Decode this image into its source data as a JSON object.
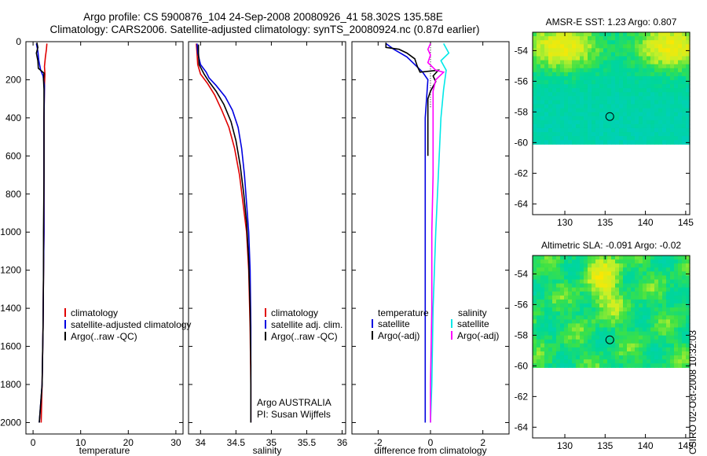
{
  "header": {
    "line1": "Argo profile: CS 5900876_104 24-Sep-2008 20080926_41 58.302S 135.58E",
    "line2": "Climatology: CARS2006. Satellite-adjusted climatology: synTS_20080924.nc (0.87d earlier)"
  },
  "colors": {
    "climatology": "#e00000",
    "satellite": "#0000e0",
    "argo": "#000000",
    "sal_satellite": "#00e8e8",
    "sal_argo": "#ff00ff"
  },
  "chart_data": [
    {
      "type": "line",
      "xlabel": "temperature",
      "ylabel": "",
      "xlim": [
        -1.5,
        31.5
      ],
      "ylim": [
        2060,
        0
      ],
      "xticks": [
        0,
        10,
        20,
        30
      ],
      "yticks": [
        0,
        200,
        400,
        600,
        800,
        1000,
        1200,
        1400,
        1600,
        1800,
        2000
      ],
      "legend": [
        "climatology",
        "satellite-adjusted climatology",
        "Argo(..raw -QC)"
      ],
      "series": [
        {
          "name": "climatology",
          "color": "#e00000",
          "points": [
            [
              2.9,
              10
            ],
            [
              2.8,
              40
            ],
            [
              2.6,
              80
            ],
            [
              2.4,
              130
            ],
            [
              2.5,
              170
            ],
            [
              2.4,
              230
            ],
            [
              2.3,
              400
            ],
            [
              2.3,
              700
            ],
            [
              2.3,
              1000
            ],
            [
              2.2,
              1200
            ],
            [
              2.1,
              1500
            ],
            [
              1.9,
              1800
            ],
            [
              1.7,
              2000
            ]
          ]
        },
        {
          "name": "satellite-adjusted climatology",
          "color": "#0000e0",
          "points": [
            [
              0.7,
              10
            ],
            [
              1.0,
              50
            ],
            [
              1.2,
              100
            ],
            [
              1.6,
              150
            ],
            [
              2.1,
              180
            ],
            [
              2.4,
              230
            ],
            [
              2.3,
              400
            ],
            [
              2.3,
              700
            ],
            [
              2.3,
              1000
            ],
            [
              2.2,
              1200
            ],
            [
              2.1,
              1500
            ],
            [
              1.9,
              1800
            ],
            [
              1.3,
              2000
            ]
          ]
        },
        {
          "name": "Argo(..raw -QC)",
          "color": "#000000",
          "points": [
            [
              0.8,
              5
            ],
            [
              1.0,
              30
            ],
            [
              0.7,
              60
            ],
            [
              1.0,
              100
            ],
            [
              1.1,
              140
            ],
            [
              2.3,
              165
            ],
            [
              2.2,
              200
            ],
            [
              2.3,
              250
            ],
            [
              2.3,
              400
            ],
            [
              2.3,
              700
            ],
            [
              2.2,
              1000
            ],
            [
              2.2,
              1200
            ],
            [
              2.1,
              1500
            ],
            [
              1.9,
              1800
            ],
            [
              1.3,
              2000
            ]
          ]
        }
      ]
    },
    {
      "type": "line",
      "xlabel": "salinity",
      "ylabel": "",
      "xlim": [
        33.83,
        36.05
      ],
      "ylim": [
        2060,
        0
      ],
      "xticks": [
        34,
        34.5,
        35,
        35.5,
        36
      ],
      "yticks": [],
      "legend": [
        "climatology",
        "satellite adj. clim.",
        "Argo(..raw -QC)"
      ],
      "annotation": [
        "Argo AUSTRALIA",
        "PI: Susan Wijffels"
      ],
      "series": [
        {
          "name": "climatology",
          "color": "#e00000",
          "points": [
            [
              33.94,
              10
            ],
            [
              33.95,
              60
            ],
            [
              33.96,
              120
            ],
            [
              34.0,
              170
            ],
            [
              34.1,
              220
            ],
            [
              34.2,
              280
            ],
            [
              34.3,
              360
            ],
            [
              34.4,
              450
            ],
            [
              34.48,
              560
            ],
            [
              34.55,
              700
            ],
            [
              34.6,
              850
            ],
            [
              34.65,
              1000
            ],
            [
              34.68,
              1200
            ],
            [
              34.7,
              1500
            ],
            [
              34.71,
              1800
            ],
            [
              34.71,
              2000
            ]
          ]
        },
        {
          "name": "satellite adj. clim.",
          "color": "#0000e0",
          "points": [
            [
              33.95,
              10
            ],
            [
              33.96,
              60
            ],
            [
              34.0,
              120
            ],
            [
              34.08,
              160
            ],
            [
              34.12,
              190
            ],
            [
              34.22,
              230
            ],
            [
              34.35,
              290
            ],
            [
              34.45,
              360
            ],
            [
              34.53,
              450
            ],
            [
              34.58,
              560
            ],
            [
              34.62,
              700
            ],
            [
              34.65,
              850
            ],
            [
              34.68,
              1000
            ],
            [
              34.7,
              1200
            ],
            [
              34.71,
              1500
            ],
            [
              34.71,
              1800
            ],
            [
              34.71,
              2000
            ]
          ]
        },
        {
          "name": "Argo(..raw -QC)",
          "color": "#000000",
          "points": [
            [
              33.97,
              15
            ],
            [
              33.97,
              60
            ],
            [
              33.98,
              120
            ],
            [
              34.05,
              170
            ],
            [
              34.12,
              210
            ],
            [
              34.22,
              260
            ],
            [
              34.33,
              330
            ],
            [
              34.43,
              420
            ],
            [
              34.5,
              520
            ],
            [
              34.56,
              650
            ],
            [
              34.61,
              800
            ],
            [
              34.65,
              950
            ],
            [
              34.68,
              1150
            ],
            [
              34.7,
              1400
            ],
            [
              34.71,
              1700
            ],
            [
              34.71,
              2000
            ]
          ]
        }
      ]
    },
    {
      "type": "line",
      "xlabel": "difference from climatology",
      "ylabel": "",
      "xlim": [
        -3.0,
        3.0
      ],
      "ylim": [
        2060,
        0
      ],
      "xticks": [
        -2,
        0,
        2
      ],
      "xticklabels": [
        "-2",
        "0",
        "2"
      ],
      "yticks": [],
      "legend_left_title": "temperature",
      "legend_right_title": "salinity",
      "legend_left": [
        "satellite",
        "Argo(-adj)"
      ],
      "legend_right": [
        "satellite",
        "Argo(-adj)"
      ],
      "series": [
        {
          "name": "temperature satellite",
          "color": "#0000e0",
          "points": [
            [
              -1.7,
              10
            ],
            [
              -1.4,
              40
            ],
            [
              -0.9,
              80
            ],
            [
              -0.6,
              120
            ],
            [
              -0.3,
              160
            ],
            [
              -0.1,
              200
            ],
            [
              -0.2,
              400
            ],
            [
              -0.2,
              800
            ],
            [
              -0.2,
              1200
            ],
            [
              -0.2,
              1600
            ],
            [
              -0.2,
              2000
            ]
          ]
        },
        {
          "name": "temperature Argo(-adj)",
          "color": "#000000",
          "points": [
            [
              -1.7,
              5
            ],
            [
              -1.7,
              30
            ],
            [
              -1.2,
              40
            ],
            [
              -0.9,
              60
            ],
            [
              -0.6,
              90
            ],
            [
              -0.5,
              130
            ],
            [
              -0.4,
              160
            ],
            [
              0.3,
              150
            ],
            [
              0.1,
              180
            ],
            [
              0.2,
              210
            ],
            [
              0.0,
              260
            ],
            [
              -0.1,
              300
            ],
            [
              -0.1,
              400
            ],
            [
              -0.1,
              600
            ]
          ]
        },
        {
          "name": "salinity satellite",
          "color": "#00e8e8",
          "points": [
            [
              0.5,
              10
            ],
            [
              0.7,
              60
            ],
            [
              0.4,
              100
            ],
            [
              0.6,
              150
            ],
            [
              0.5,
              250
            ],
            [
              0.4,
              400
            ],
            [
              0.3,
              700
            ],
            [
              0.2,
              1000
            ],
            [
              0.1,
              1400
            ],
            [
              0.05,
              1800
            ],
            [
              0.0,
              2000
            ]
          ]
        },
        {
          "name": "salinity Argo(-adj)",
          "color": "#ff00ff",
          "points": [
            [
              0.0,
              10
            ],
            [
              -0.1,
              40
            ],
            [
              0.0,
              70
            ],
            [
              -0.1,
              110
            ],
            [
              0.2,
              150
            ],
            [
              0.5,
              160
            ],
            [
              0.2,
              200
            ],
            [
              0.1,
              260
            ],
            [
              0.1,
              400
            ],
            [
              0.1,
              700
            ],
            [
              0.05,
              1000
            ],
            [
              0.05,
              1400
            ],
            [
              0.0,
              1800
            ],
            [
              0.0,
              2000
            ]
          ]
        }
      ]
    },
    {
      "type": "heatmap",
      "title": "AMSR-E SST: 1.23 Argo: 0.807",
      "xlim": [
        126,
        145.5
      ],
      "ylim": [
        -64.7,
        -52.8
      ],
      "xticks": [
        130,
        135,
        140,
        145
      ],
      "yticks": [
        -54,
        -56,
        -58,
        -60,
        -62,
        -64
      ],
      "data_extent_lat": [
        -60.1,
        -52.8
      ],
      "marker": {
        "lon": 135.58,
        "lat": -58.3
      }
    },
    {
      "type": "heatmap",
      "title": "Altimetric SLA: -0.091 Argo: -0.02",
      "xlim": [
        126,
        145.5
      ],
      "ylim": [
        -64.7,
        -52.8
      ],
      "xticks": [
        130,
        135,
        140,
        145
      ],
      "yticks": [
        -54,
        -56,
        -58,
        -60,
        -62,
        -64
      ],
      "data_extent_lat": [
        -60.1,
        -52.8
      ],
      "marker": {
        "lon": 135.58,
        "lat": -58.3
      }
    }
  ],
  "footer": {
    "stamp": "CSIRO 02-Oct-2008 10:32:03"
  }
}
